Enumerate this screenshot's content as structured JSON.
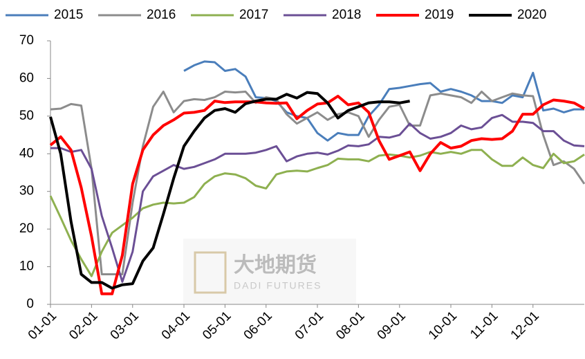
{
  "chart_data": {
    "type": "line",
    "watermark": [
      "大地期货",
      "DADI FUTURES"
    ],
    "categories": [
      "01-01",
      null,
      null,
      null,
      "02-01",
      null,
      null,
      null,
      "03-01",
      null,
      null,
      null,
      null,
      "04-01",
      null,
      null,
      null,
      "05-01",
      null,
      null,
      null,
      "06-01",
      null,
      null,
      null,
      null,
      "07-01",
      null,
      null,
      null,
      "08-01",
      null,
      null,
      null,
      "09-01",
      null,
      null,
      null,
      null,
      "10-01",
      null,
      null,
      null,
      "11-01",
      null,
      null,
      null,
      "12-01",
      null,
      null,
      null,
      null,
      null
    ],
    "ylim": [
      0,
      70
    ],
    "yticks": [
      0,
      10,
      20,
      30,
      40,
      50,
      60,
      70
    ],
    "grid": false,
    "legend": "top",
    "series": [
      {
        "name": "2015",
        "color": "#4a7ebb",
        "values": [
          null,
          null,
          null,
          null,
          null,
          null,
          null,
          null,
          null,
          null,
          null,
          null,
          null,
          62,
          63.5,
          64.5,
          64.3,
          62,
          62.5,
          60.5,
          55,
          54.8,
          54,
          51,
          50,
          49.5,
          45.5,
          43.5,
          45.5,
          45,
          45,
          50,
          53,
          57.2,
          57.5,
          58,
          58.5,
          58.8,
          56.5,
          57.2,
          56.5,
          55.5,
          54,
          54,
          53.5,
          55.5,
          55,
          61.5,
          51.5,
          52,
          51,
          51.8,
          51.8
        ]
      },
      {
        "name": "2016",
        "color": "#8c8c8c",
        "values": [
          51.8,
          52,
          53.2,
          52.8,
          36,
          8,
          8,
          8,
          27,
          42,
          52.5,
          56.5,
          51,
          54,
          54.5,
          54.3,
          55,
          56.5,
          56.3,
          56.5,
          53.5,
          55,
          54.5,
          50.5,
          48,
          49.5,
          51,
          49,
          50.5,
          51,
          50,
          44.5,
          49,
          52.5,
          53,
          47.5,
          47.5,
          55.5,
          56,
          55.5,
          55,
          53.5,
          56.5,
          54,
          55,
          56,
          55.5,
          55.3,
          45,
          37,
          38,
          36,
          32
        ]
      },
      {
        "name": "2017",
        "color": "#8eb050",
        "values": [
          28.8,
          23,
          17,
          12,
          7.5,
          14,
          19,
          21,
          23,
          25.5,
          26.5,
          27,
          26.8,
          27,
          28.5,
          32,
          34,
          34.8,
          34.5,
          33.5,
          31.5,
          30.8,
          34.5,
          35.3,
          35.5,
          35.3,
          36.2,
          37,
          38.7,
          38.5,
          38.5,
          38,
          39.5,
          39.8,
          39.5,
          39,
          39.5,
          40.5,
          40,
          40.5,
          40,
          41,
          41,
          38.5,
          36.8,
          36.8,
          39,
          37,
          36.2,
          40,
          37.5,
          38,
          39.8
        ]
      },
      {
        "name": "2018",
        "color": "#6b4f95",
        "values": [
          41.5,
          41.5,
          40.5,
          41,
          36,
          23.5,
          15,
          6,
          14,
          30,
          34,
          35.5,
          37,
          36,
          36.5,
          37.5,
          38.5,
          40,
          40,
          40,
          40.3,
          41,
          42,
          38,
          39.3,
          40,
          40.3,
          39.8,
          40.8,
          42.2,
          42,
          42.5,
          44.5,
          44.3,
          45,
          48,
          45.5,
          44,
          44.5,
          45.5,
          47.5,
          46.5,
          47,
          49.5,
          50.3,
          48.5,
          48.5,
          48.2,
          46,
          46,
          43.5,
          42.2,
          42
        ]
      },
      {
        "name": "2019",
        "color": "#ff0000",
        "values": [
          42.3,
          44.5,
          41,
          31,
          18,
          2.8,
          2.8,
          13,
          32,
          41,
          45,
          47.5,
          49,
          50.8,
          51,
          51.5,
          54,
          53.6,
          53.8,
          53.8,
          53.8,
          53.5,
          53.4,
          53.5,
          49.3,
          51.5,
          53.2,
          53.5,
          55.3,
          53,
          53.5,
          51,
          43.5,
          38.5,
          39.5,
          40.5,
          35.5,
          40,
          43,
          41.5,
          42,
          43.5,
          44,
          43.8,
          44,
          46,
          50.5,
          50.5,
          53,
          54.3,
          54,
          53.5,
          52
        ]
      },
      {
        "name": "2020",
        "color": "#000000",
        "values": [
          49.8,
          40,
          22,
          8,
          5.8,
          5.8,
          4.3,
          5.2,
          5.5,
          11.5,
          15,
          24,
          33.5,
          42,
          46,
          49.5,
          51.5,
          52,
          51,
          53.3,
          54,
          54.5,
          54.5,
          55.8,
          54.8,
          56.3,
          56,
          53.5,
          49.5,
          51.5,
          52.5,
          53.5,
          53.8,
          53.8,
          53.5,
          54,
          null,
          null,
          null,
          null,
          null,
          null,
          null,
          null,
          null,
          null,
          null,
          null,
          null,
          null,
          null,
          null,
          null
        ]
      }
    ]
  }
}
